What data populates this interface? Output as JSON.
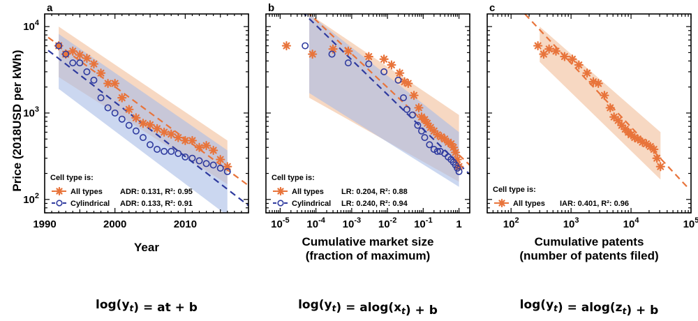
{
  "colors": {
    "all_types": "#e8743b",
    "cylindrical": "#2e3a9e",
    "band_all": "#f3c7a8",
    "band_cyl": "#a9bde6"
  },
  "shared": {
    "ylabel": "Price (2018USD per kWh)",
    "legend_title": "Cell type is:"
  },
  "chart_data": [
    {
      "panel": "a",
      "type": "scatter",
      "xlabel_lines": [
        "Year"
      ],
      "formula": "log(y_t) = at + b",
      "x_scale": "linear",
      "y_scale": "log",
      "xlim": [
        1990,
        2019
      ],
      "ylim": [
        70,
        14000
      ],
      "x_ticks": [
        1990,
        2000,
        2010
      ],
      "x_tick_labels": [
        "1990",
        "2000",
        "2010"
      ],
      "y_ticks": [
        100,
        1000,
        10000
      ],
      "y_tick_labels": [
        "10^2",
        "10^3",
        "10^4"
      ],
      "series": [
        {
          "name": "All types",
          "stat": "ADR: 0.131, R²: 0.95",
          "key": "all_types",
          "marker": "asterisk",
          "points": [
            [
              1992,
              6000
            ],
            [
              1993,
              4800
            ],
            [
              1994,
              5200
            ],
            [
              1995,
              4700
            ],
            [
              1996,
              4300
            ],
            [
              1997,
              3700
            ],
            [
              1998,
              2900
            ],
            [
              1999,
              2200
            ],
            [
              2000,
              2200
            ],
            [
              2001,
              1500
            ],
            [
              2002,
              1100
            ],
            [
              2003,
              880
            ],
            [
              2004,
              760
            ],
            [
              2005,
              730
            ],
            [
              2006,
              660
            ],
            [
              2007,
              600
            ],
            [
              2008,
              570
            ],
            [
              2009,
              520
            ],
            [
              2010,
              480
            ],
            [
              2011,
              480
            ],
            [
              2012,
              400
            ],
            [
              2013,
              420
            ],
            [
              2014,
              370
            ],
            [
              2015,
              290
            ],
            [
              2016,
              240
            ]
          ],
          "fit": [
            [
              1990.5,
              7500
            ],
            [
              2019,
              145
            ]
          ],
          "band_upper": [
            [
              1992,
              10000
            ],
            [
              2016,
              480
            ]
          ],
          "band_lower": [
            [
              1992,
              2600
            ],
            [
              2016,
              150
            ]
          ]
        },
        {
          "name": "Cylindrical",
          "stat": "ADR: 0.133, R²: 0.91",
          "key": "cylindrical",
          "marker": "circle",
          "points": [
            [
              1992,
              6000
            ],
            [
              1993,
              4800
            ],
            [
              1994,
              3800
            ],
            [
              1995,
              3800
            ],
            [
              1996,
              3000
            ],
            [
              1997,
              2400
            ],
            [
              1998,
              1500
            ],
            [
              1999,
              1150
            ],
            [
              2000,
              1000
            ],
            [
              2001,
              850
            ],
            [
              2002,
              720
            ],
            [
              2003,
              620
            ],
            [
              2004,
              520
            ],
            [
              2005,
              430
            ],
            [
              2006,
              380
            ],
            [
              2007,
              360
            ],
            [
              2008,
              360
            ],
            [
              2009,
              340
            ],
            [
              2010,
              310
            ],
            [
              2011,
              300
            ],
            [
              2012,
              280
            ],
            [
              2013,
              260
            ],
            [
              2014,
              250
            ],
            [
              2015,
              230
            ],
            [
              2016,
              210
            ]
          ],
          "fit": [
            [
              1990.5,
              5300
            ],
            [
              2019,
              85
            ]
          ],
          "band_upper": [
            [
              1992,
              8200
            ],
            [
              2016,
              370
            ]
          ],
          "band_lower": [
            [
              1992,
              1900
            ],
            [
              2016,
              65
            ]
          ]
        }
      ]
    },
    {
      "panel": "b",
      "type": "scatter",
      "xlabel_lines": [
        "Cumulative market size",
        "(fraction of maximum)"
      ],
      "formula": "log(y_t) = alog(x_t) + b",
      "x_scale": "log",
      "y_scale": "log",
      "xlim": [
        4e-06,
        2
      ],
      "ylim": [
        70,
        14000
      ],
      "x_ticks": [
        1e-05,
        0.0001,
        0.001,
        0.01,
        0.1,
        1
      ],
      "x_tick_labels": [
        "10^-5",
        "10^-4",
        "10^-3",
        "10^-2",
        "10^-1",
        "1"
      ],
      "y_ticks": [
        100,
        1000,
        10000
      ],
      "y_tick_labels": [
        "",
        "",
        ""
      ],
      "series": [
        {
          "name": "All types",
          "stat": "LR: 0.204, R²: 0.88",
          "key": "all_types",
          "marker": "asterisk",
          "points": [
            [
              1.5e-05,
              6000
            ],
            [
              8e-05,
              4800
            ],
            [
              0.0003,
              5500
            ],
            [
              0.0008,
              5200
            ],
            [
              0.003,
              4500
            ],
            [
              0.008,
              4200
            ],
            [
              0.013,
              3600
            ],
            [
              0.022,
              2900
            ],
            [
              0.03,
              2300
            ],
            [
              0.038,
              2200
            ],
            [
              0.055,
              1600
            ],
            [
              0.075,
              1150
            ],
            [
              0.09,
              900
            ],
            [
              0.11,
              840
            ],
            [
              0.13,
              760
            ],
            [
              0.16,
              680
            ],
            [
              0.2,
              620
            ],
            [
              0.25,
              560
            ],
            [
              0.32,
              530
            ],
            [
              0.4,
              500
            ],
            [
              0.5,
              460
            ],
            [
              0.6,
              440
            ],
            [
              0.7,
              400
            ],
            [
              0.8,
              350
            ],
            [
              0.9,
              290
            ],
            [
              1.0,
              240
            ]
          ],
          "fit": [
            [
              5.5e-05,
              15000
            ],
            [
              2,
              250
            ]
          ],
          "band_upper": [
            [
              6.5e-05,
              14000
            ],
            [
              1,
              950
            ]
          ],
          "band_lower": [
            [
              6.5e-05,
              1500
            ],
            [
              1,
              160
            ]
          ]
        },
        {
          "name": "Cylindrical",
          "stat": "LR: 0.240, R²: 0.94",
          "key": "cylindrical",
          "marker": "circle",
          "points": [
            [
              5e-05,
              6000
            ],
            [
              0.00028,
              4800
            ],
            [
              0.0008,
              3800
            ],
            [
              0.003,
              3700
            ],
            [
              0.008,
              3000
            ],
            [
              0.02,
              2400
            ],
            [
              0.028,
              1500
            ],
            [
              0.035,
              1100
            ],
            [
              0.05,
              950
            ],
            [
              0.07,
              720
            ],
            [
              0.09,
              620
            ],
            [
              0.11,
              520
            ],
            [
              0.15,
              430
            ],
            [
              0.2,
              380
            ],
            [
              0.25,
              360
            ],
            [
              0.3,
              360
            ],
            [
              0.4,
              340
            ],
            [
              0.5,
              310
            ],
            [
              0.6,
              290
            ],
            [
              0.7,
              270
            ],
            [
              0.8,
              250
            ],
            [
              0.9,
              230
            ],
            [
              1.0,
              210
            ]
          ],
          "fit": [
            [
              4e-05,
              15000
            ],
            [
              2,
              195
            ]
          ],
          "band_upper": [
            [
              6.5e-05,
              14000
            ],
            [
              1,
              600
            ]
          ],
          "band_lower": [
            [
              6.5e-05,
              1700
            ],
            [
              1,
              140
            ]
          ]
        }
      ]
    },
    {
      "panel": "c",
      "type": "scatter",
      "xlabel_lines": [
        "Cumulative patents",
        "(number of patents filed)"
      ],
      "formula": "log(y_t) = alog(z_t) + b",
      "x_scale": "log",
      "y_scale": "log",
      "xlim": [
        40,
        100000
      ],
      "ylim": [
        70,
        14000
      ],
      "x_ticks": [
        100,
        1000,
        10000,
        100000
      ],
      "x_tick_labels": [
        "10^2",
        "10^3",
        "10^4",
        "10^5"
      ],
      "y_ticks": [
        100,
        1000,
        10000
      ],
      "y_tick_labels": [
        "",
        "",
        ""
      ],
      "series": [
        {
          "name": "All types",
          "stat": "IAR: 0.401, R²: 0.96",
          "key": "all_types",
          "marker": "asterisk",
          "points": [
            [
              280,
              6000
            ],
            [
              350,
              4800
            ],
            [
              430,
              5500
            ],
            [
              560,
              5200
            ],
            [
              780,
              4500
            ],
            [
              1050,
              4200
            ],
            [
              1350,
              3600
            ],
            [
              1850,
              2900
            ],
            [
              2350,
              2300
            ],
            [
              2850,
              2200
            ],
            [
              3600,
              1600
            ],
            [
              4500,
              1150
            ],
            [
              5200,
              900
            ],
            [
              6100,
              820
            ],
            [
              7000,
              720
            ],
            [
              8000,
              650
            ],
            [
              9000,
              600
            ],
            [
              10000,
              560
            ],
            [
              11500,
              520
            ],
            [
              13000,
              500
            ],
            [
              15500,
              460
            ],
            [
              18000,
              440
            ],
            [
              21000,
              410
            ],
            [
              24000,
              380
            ],
            [
              27000,
              300
            ],
            [
              31000,
              240
            ]
          ],
          "fit": [
            [
              170,
              14000
            ],
            [
              95000,
              130
            ]
          ],
          "band_upper": [
            [
              300,
              10000
            ],
            [
              31000,
              600
            ]
          ],
          "band_lower": [
            [
              300,
              3900
            ],
            [
              31000,
              170
            ]
          ]
        }
      ]
    }
  ]
}
